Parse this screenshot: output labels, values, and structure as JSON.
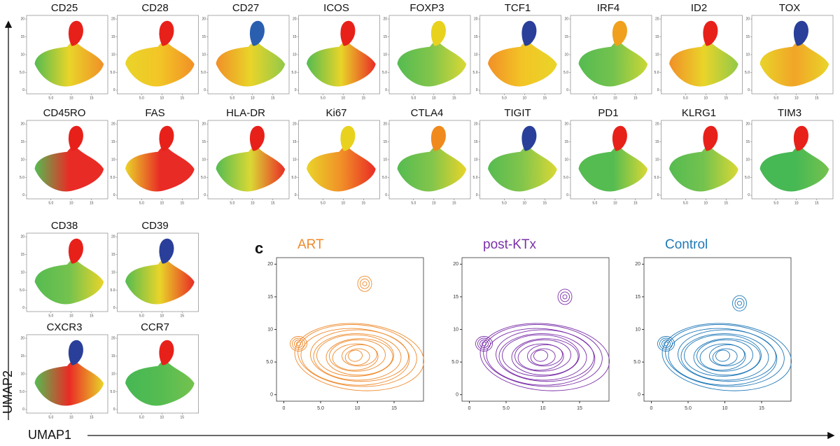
{
  "chart_data": {
    "type": "umap-panels",
    "x_axis_label": "UMAP1",
    "y_axis_label": "UMAP2",
    "panel_label": "c",
    "marker_axes": {
      "xticks": [
        {
          "value": 5,
          "label": "5.0"
        },
        10,
        15
      ],
      "yticks": [
        0,
        {
          "value": 5,
          "label": "5.0"
        },
        10,
        15,
        20
      ]
    },
    "marker_rows": [
      [
        {
          "name": "CD25",
          "colors": [
            "#4cb848",
            "#e8d21e",
            "#f08a1c"
          ],
          "top": "#e8201a"
        },
        {
          "name": "CD28",
          "colors": [
            "#e8d21e",
            "#f2c21a",
            "#f08a1c"
          ],
          "top": "#e8201a"
        },
        {
          "name": "CD27",
          "colors": [
            "#f08a1c",
            "#e8d21e",
            "#8cc63f"
          ],
          "top": "#2a5fb0"
        },
        {
          "name": "ICOS",
          "colors": [
            "#4cb848",
            "#e8d21e",
            "#e8201a"
          ],
          "top": "#e8201a"
        },
        {
          "name": "FOXP3",
          "colors": [
            "#4cb848",
            "#7cc242",
            "#d8d62a"
          ],
          "top": "#e8d21e"
        },
        {
          "name": "TCF1",
          "colors": [
            "#f08a1c",
            "#f2c21a",
            "#e8d21e"
          ],
          "top": "#2a3f9a"
        },
        {
          "name": "IRF4",
          "colors": [
            "#4cb848",
            "#6dbf45",
            "#c8d52a"
          ],
          "top": "#f0a01c"
        },
        {
          "name": "ID2",
          "colors": [
            "#f08a1c",
            "#e8d21e",
            "#8cc63f"
          ],
          "top": "#e8201a"
        },
        {
          "name": "TOX",
          "colors": [
            "#e8d21e",
            "#f0a01c",
            "#e8d21e"
          ],
          "top": "#2a3f9a"
        }
      ],
      [
        {
          "name": "CD45RO",
          "colors": [
            "#4cb848",
            "#e8201a",
            "#e8201a"
          ],
          "top": "#e8201a"
        },
        {
          "name": "FAS",
          "colors": [
            "#e8d21e",
            "#e8201a",
            "#e8201a"
          ],
          "top": "#e8201a"
        },
        {
          "name": "HLA-DR",
          "colors": [
            "#4cb848",
            "#d8d62a",
            "#e8201a"
          ],
          "top": "#e8201a"
        },
        {
          "name": "Ki67",
          "colors": [
            "#e8d21e",
            "#f08a1c",
            "#e8201a"
          ],
          "top": "#e8d21e"
        },
        {
          "name": "CTLA4",
          "colors": [
            "#4cb848",
            "#7cc242",
            "#e8d21e"
          ],
          "top": "#f08a1c"
        },
        {
          "name": "TIGIT",
          "colors": [
            "#4cb848",
            "#7cc242",
            "#d8d62a"
          ],
          "top": "#2a3f9a"
        },
        {
          "name": "PD1",
          "colors": [
            "#4cb848",
            "#4cb848",
            "#d8d62a"
          ],
          "top": "#e8201a"
        },
        {
          "name": "KLRG1",
          "colors": [
            "#4cb848",
            "#6dbf45",
            "#d8d62a"
          ],
          "top": "#e8201a"
        },
        {
          "name": "TIM3",
          "colors": [
            "#3cb44b",
            "#3cb44b",
            "#6dbf45"
          ],
          "top": "#e8201a"
        }
      ],
      [
        {
          "name": "CD38",
          "colors": [
            "#4cb848",
            "#6dbf45",
            "#e8d21e"
          ],
          "top": "#e8201a"
        },
        {
          "name": "CD39",
          "colors": [
            "#4cb848",
            "#e8d21e",
            "#e8201a"
          ],
          "top": "#2a3f9a"
        }
      ],
      [
        {
          "name": "CXCR3",
          "colors": [
            "#4cb848",
            "#e8201a",
            "#e8d21e"
          ],
          "top": "#2a3f9a"
        },
        {
          "name": "CCR7",
          "colors": [
            "#3cb44b",
            "#4cb848",
            "#6dbf45"
          ],
          "top": "#e8201a"
        }
      ]
    ],
    "contours": {
      "xlim": [
        -1,
        19
      ],
      "ylim": [
        -1,
        21
      ],
      "xticks": [
        0,
        {
          "value": 5,
          "label": "5.0"
        },
        10,
        15
      ],
      "yticks": [
        0,
        {
          "value": 5,
          "label": "5.0"
        },
        10,
        15,
        20
      ],
      "series": [
        {
          "name": "ART",
          "color": "#ef8a2c"
        },
        {
          "name": "post-KTx",
          "color": "#7a2fa8"
        },
        {
          "name": "Control",
          "color": "#1f78b8"
        }
      ]
    }
  }
}
